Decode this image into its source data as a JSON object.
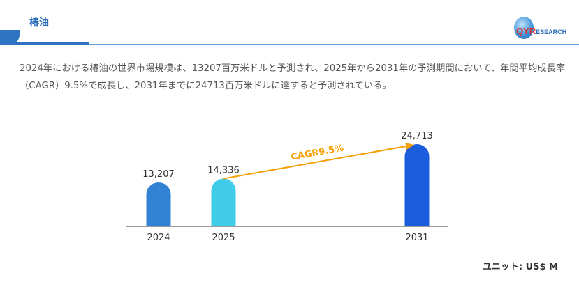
{
  "header": {
    "title": "椿油",
    "logo_text": "QYRESEARCH"
  },
  "description": "2024年における椿油の世界市場規模は、13207百万米ドルと予測され、2025年から2031年の予測期間において、年間平均成長率（CAGR）9.5%で成長し、2031年までに24713百万米ドルに達すると予測されている。",
  "unit": "ユニット: US$ M",
  "chart_data": {
    "type": "bar",
    "categories": [
      "2024",
      "2025",
      "2031"
    ],
    "values": [
      13207,
      14336,
      24713
    ],
    "value_labels": [
      "13,207",
      "14,336",
      "24,713"
    ],
    "colors": [
      "#3182d4",
      "#40cbe8",
      "#1a5ddc"
    ],
    "annotation": {
      "text": "CAGR9.5%",
      "from": "2025",
      "to": "2031",
      "color": "#f5a000"
    },
    "ylim": [
      0,
      28000
    ],
    "grid": false
  }
}
